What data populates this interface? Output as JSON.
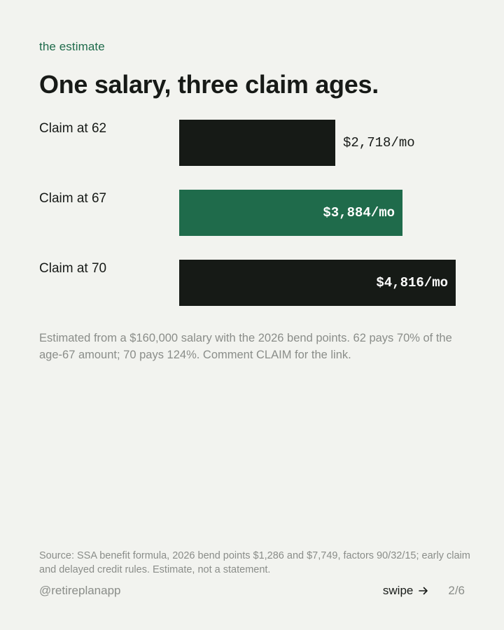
{
  "kicker": "the estimate",
  "title": "One salary, three claim ages.",
  "colors": {
    "background": "#f2f3ef",
    "bar_dark": "#161a16",
    "bar_highlight": "#1f6b4b",
    "muted_text": "#8a8d89",
    "accent_text": "#1f6b4b"
  },
  "chart_data": {
    "type": "bar",
    "orientation": "horizontal",
    "categories": [
      "Claim at 62",
      "Claim at 67",
      "Claim at 70"
    ],
    "values": [
      2718,
      3884,
      4816
    ],
    "value_labels": [
      "$2,718/mo",
      "$3,884/mo",
      "$4,816/mo"
    ],
    "highlight_index": 1,
    "xlim": [
      0,
      4816
    ],
    "grid": false,
    "title": "",
    "xlabel": "",
    "ylabel": ""
  },
  "note": "Estimated from a $160,000 salary with the 2026 bend points. 62 pays 70% of the age-67 amount; 70 pays 124%. Comment CLAIM for the link.",
  "source": "Source: SSA benefit formula, 2026 bend points $1,286 and $7,749, factors 90/32/15; early claim and delayed credit rules. Estimate, not a statement.",
  "footer": {
    "handle": "@retireplanapp",
    "swipe_label": "swipe",
    "swipe_icon": "arrow-right-icon",
    "page": "2/6"
  }
}
